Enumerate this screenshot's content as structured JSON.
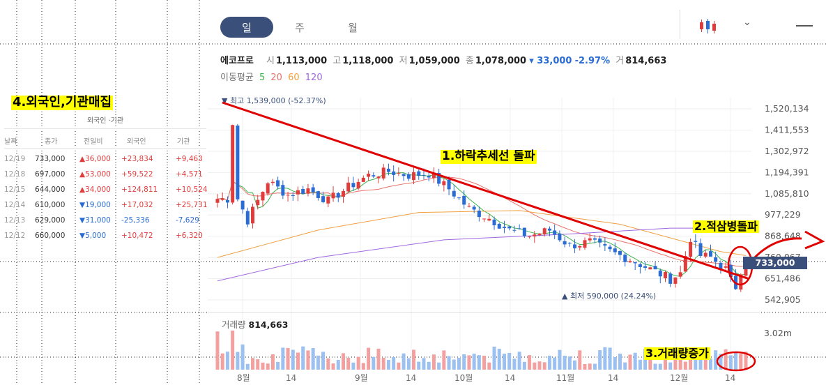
{
  "tabs": [
    {
      "label": "일",
      "active": true
    },
    {
      "label": "주",
      "active": false
    },
    {
      "label": "월",
      "active": false
    }
  ],
  "toolbar": {
    "chart_type_icon": "candlestick-icon",
    "dropdown_icon": "chevron-down-icon",
    "menu_icon": "menu-icon"
  },
  "quote": {
    "name": "에코프로",
    "open_label": "시",
    "open": "1,113,000",
    "high_label": "고",
    "high": "1,118,000",
    "low_label": "저",
    "low": "1,059,000",
    "close_label": "종",
    "close": "1,078,000",
    "change": "▾ 33,000",
    "change_pct": "-2.97%",
    "vol_label": "거",
    "volume": "814,663"
  },
  "ma": {
    "label": "이동평균",
    "periods": [
      "5",
      "20",
      "60",
      "120"
    ],
    "colors": [
      "#3cb44b",
      "#e8736a",
      "#f0a040",
      "#a066e0"
    ]
  },
  "annotations": {
    "breakout": "1.하락추세선 돌파",
    "golden": "2.적삼병돌파",
    "volume": "3.거래량증가",
    "investor": "4.외국인,기관매집"
  },
  "investor_table": {
    "title": "외국인 ·기관",
    "headers": [
      "날짜",
      "종가",
      "전일비",
      "외국인",
      "기관"
    ],
    "rows": [
      {
        "date": "12/19",
        "close": "733,000",
        "change": "▲36,000",
        "dir": "up",
        "foreign": "+23,834",
        "fdir": "up",
        "inst": "+9,463",
        "idir": "up"
      },
      {
        "date": "12/18",
        "close": "697,000",
        "change": "▲53,000",
        "dir": "up",
        "foreign": "+59,522",
        "fdir": "up",
        "inst": "+4,571",
        "idir": "up"
      },
      {
        "date": "12/15",
        "close": "644,000",
        "change": "▲34,000",
        "dir": "up",
        "foreign": "+124,811",
        "fdir": "up",
        "inst": "+10,524",
        "idir": "up"
      },
      {
        "date": "12/14",
        "close": "610,000",
        "change": "▼19,000",
        "dir": "dn",
        "foreign": "+17,032",
        "fdir": "up",
        "inst": "+25,731",
        "idir": "up"
      },
      {
        "date": "12/13",
        "close": "629,000",
        "change": "▼31,000",
        "dir": "dn",
        "foreign": "-25,336",
        "fdir": "dn",
        "inst": "-7,629",
        "idir": "dn"
      },
      {
        "date": "12/12",
        "close": "660,000",
        "change": "▼5,000",
        "dir": "dn",
        "foreign": "+10,472",
        "fdir": "up",
        "inst": "+6,320",
        "idir": "up"
      }
    ]
  },
  "price_tag": "733,000",
  "volume_panel": {
    "label": "거래량",
    "value": "814,663",
    "ytick": "3.02m"
  },
  "chart_data": {
    "type": "candlestick",
    "y_ticks": [
      "1,520,134",
      "1,411,553",
      "1,302,972",
      "1,194,391",
      "1,085,810",
      "977,229",
      "868,648",
      "760,067",
      "651,486",
      "542,905"
    ],
    "y_tick_values": [
      1520134,
      1411553,
      1302972,
      1194391,
      1085810,
      977229,
      868648,
      760067,
      651486,
      542905
    ],
    "x_ticks": [
      "8월",
      "14",
      "9월",
      "14",
      "10월",
      "14",
      "11월",
      "14",
      "12월",
      "14"
    ],
    "high_label": "최고 1,539,000 (-52.37%)",
    "low_label": "▲ 최저 590,000 (24.24%)",
    "last_close": 733000,
    "colors": {
      "up": "#e03c3c",
      "down": "#2a6cd3",
      "trendline": "#e00000",
      "vol_up": "#f2a0a0",
      "vol_down": "#9cc0ef"
    }
  }
}
